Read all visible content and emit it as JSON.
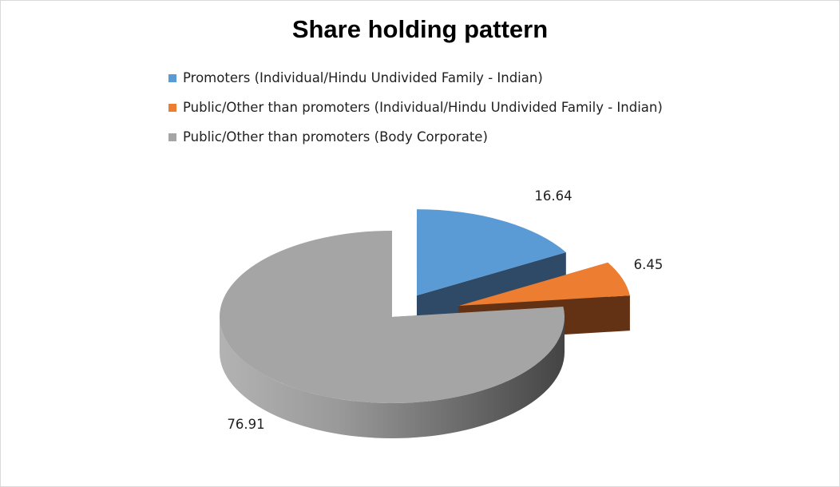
{
  "chart_data": {
    "type": "pie",
    "title": "Share holding pattern",
    "legend_position": "top",
    "exploded": true,
    "three_d": true,
    "slices": [
      {
        "label": "Promoters (Individual/Hindu Undivided Family - Indian)",
        "value": 16.64,
        "value_label": "16.64",
        "color": "#5b9bd5",
        "side_color": "#2e4a67"
      },
      {
        "label": "Public/Other than promoters (Individual/Hindu Undivided Family - Indian)",
        "value": 6.45,
        "value_label": "6.45",
        "color": "#ed7d31",
        "side_color": "#633214"
      },
      {
        "label": "Public/Other than promoters (Body Corporate)",
        "value": 76.91,
        "value_label": "76.91",
        "color": "#a5a5a5",
        "side_color": "#6e6e6e"
      }
    ]
  }
}
